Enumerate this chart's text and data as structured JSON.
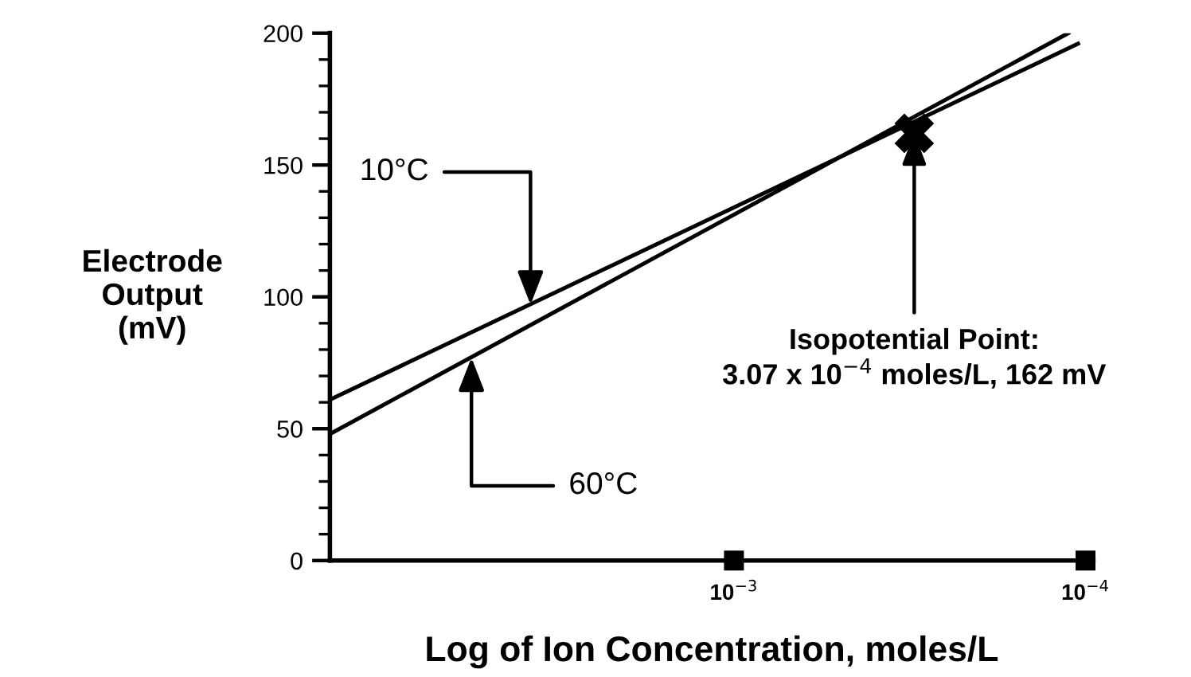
{
  "chart_data": {
    "type": "line",
    "xlabel": "Log of Ion Concentration, moles/L",
    "ylabel": "Electrode\nOutput\n(mV)",
    "log": "x",
    "xlim": [
      0.0141,
      9.5e-05
    ],
    "xticks": [
      {
        "value": 0.001,
        "label": "10$^{−3}$"
      },
      {
        "value": 0.0001,
        "label": "10$^{−4}$"
      }
    ],
    "ylim": [
      0,
      200
    ],
    "yticks": [
      0,
      {
        "value": 10,
        "label": null
      },
      {
        "value": 20,
        "label": null
      },
      {
        "value": 30,
        "label": null
      },
      {
        "value": 40,
        "label": null
      },
      50,
      {
        "value": 60,
        "label": null
      },
      {
        "value": 70,
        "label": null
      },
      {
        "value": 80,
        "label": null
      },
      {
        "value": 90,
        "label": null
      },
      100,
      {
        "value": 110,
        "label": null
      },
      {
        "value": 120,
        "label": null
      },
      {
        "value": 130,
        "label": null
      },
      {
        "value": 140,
        "label": null
      },
      150,
      {
        "value": 160,
        "label": null
      },
      {
        "value": 170,
        "label": null
      },
      {
        "value": 180,
        "label": null
      },
      {
        "value": 190,
        "label": null
      },
      200
    ],
    "grid": false,
    "marker": "none",
    "line_style": "solid",
    "series": [
      {
        "color": "#000000",
        "x": [
          0.0141,
          0.000105
        ],
        "values": [
          61,
          196
        ]
      },
      {
        "color": "#000000",
        "x": [
          0.0141,
          0.000112
        ],
        "values": [
          48,
          200
        ]
      },
      {
        "type": "scatter",
        "marker": "cross",
        "color": "#000000",
        "x": [
          0.000307
        ],
        "values": [
          162
        ]
      }
    ],
    "annotations": [
      {
        "text": "10°C",
        "x": 0.00379,
        "y": 97
      },
      {
        "text": "60°C",
        "x": 0.00558,
        "y": 77
      },
      {
        "text": "Isopotential Point:\n3.07 x 10$^{−4}$ moles/L, 162 mV",
        "x": 0.000307,
        "y": 162
      }
    ]
  }
}
